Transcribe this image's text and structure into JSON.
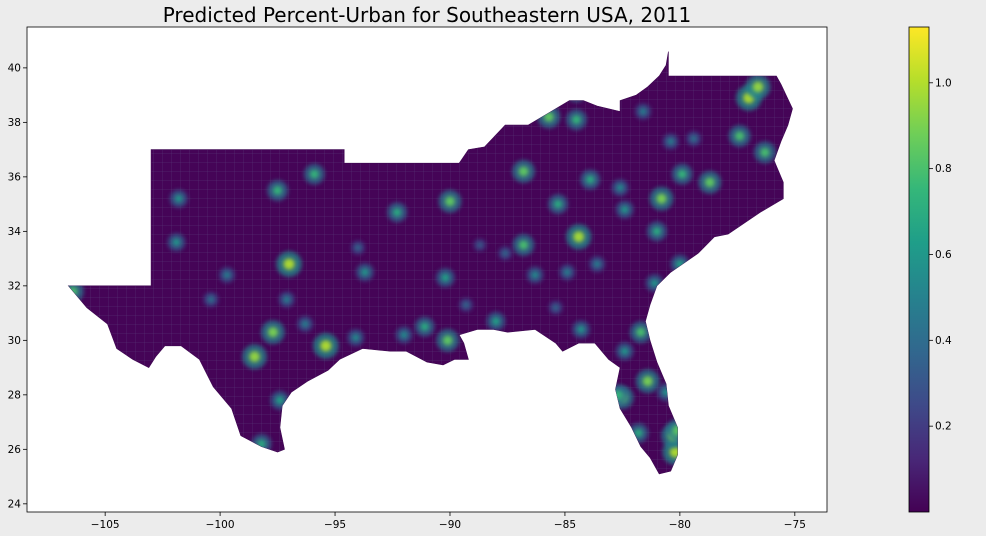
{
  "chart_data": {
    "type": "heatmap",
    "title": "Predicted Percent-Urban for Southeastern USA, 2011",
    "x_ticks": [
      "−105",
      "−100",
      "−95",
      "−90",
      "−85",
      "−80",
      "−75"
    ],
    "x_tick_values": [
      -105,
      -100,
      -95,
      -90,
      -85,
      -80,
      -75
    ],
    "y_ticks": [
      "24",
      "26",
      "28",
      "30",
      "32",
      "34",
      "36",
      "38",
      "40"
    ],
    "y_tick_values": [
      24,
      26,
      28,
      30,
      32,
      34,
      36,
      38,
      40
    ],
    "xlim": [
      -108.4,
      -73.6
    ],
    "ylim": [
      23.7,
      41.5
    ],
    "colorbar": {
      "colormap": "viridis",
      "range": [
        0,
        1.13
      ],
      "ticks": [
        "0.2",
        "0.4",
        "0.6",
        "0.8",
        "1.0"
      ],
      "tick_values": [
        0.2,
        0.4,
        0.6,
        0.8,
        1.0
      ]
    },
    "region_outline_lonlat": [
      [
        -106.6,
        32.0
      ],
      [
        -103.0,
        32.0
      ],
      [
        -103.0,
        36.5
      ],
      [
        -103.0,
        37.0
      ],
      [
        -94.6,
        37.0
      ],
      [
        -94.6,
        36.5
      ],
      [
        -90.1,
        36.5
      ],
      [
        -89.6,
        36.5
      ],
      [
        -89.2,
        37.0
      ],
      [
        -88.5,
        37.1
      ],
      [
        -87.6,
        37.9
      ],
      [
        -86.6,
        37.9
      ],
      [
        -85.8,
        38.3
      ],
      [
        -84.8,
        38.8
      ],
      [
        -84.2,
        38.8
      ],
      [
        -83.6,
        38.6
      ],
      [
        -82.6,
        38.4
      ],
      [
        -82.6,
        38.8
      ],
      [
        -81.9,
        39.0
      ],
      [
        -81.4,
        39.3
      ],
      [
        -80.9,
        39.7
      ],
      [
        -80.6,
        40.1
      ],
      [
        -80.5,
        40.6
      ],
      [
        -80.5,
        39.7
      ],
      [
        -75.8,
        39.7
      ],
      [
        -75.6,
        39.4
      ],
      [
        -75.1,
        38.5
      ],
      [
        -75.3,
        37.9
      ],
      [
        -75.6,
        37.3
      ],
      [
        -75.9,
        36.6
      ],
      [
        -75.5,
        35.8
      ],
      [
        -75.5,
        35.2
      ],
      [
        -76.5,
        34.7
      ],
      [
        -77.9,
        33.9
      ],
      [
        -78.5,
        33.8
      ],
      [
        -79.2,
        33.2
      ],
      [
        -80.4,
        32.5
      ],
      [
        -81.0,
        32.0
      ],
      [
        -81.3,
        31.3
      ],
      [
        -81.5,
        30.7
      ],
      [
        -81.3,
        30.0
      ],
      [
        -81.0,
        29.2
      ],
      [
        -80.6,
        28.4
      ],
      [
        -80.5,
        27.6
      ],
      [
        -80.1,
        26.8
      ],
      [
        -80.1,
        25.8
      ],
      [
        -80.4,
        25.2
      ],
      [
        -80.9,
        25.1
      ],
      [
        -81.3,
        25.7
      ],
      [
        -81.7,
        26.1
      ],
      [
        -82.1,
        26.8
      ],
      [
        -82.6,
        27.5
      ],
      [
        -82.8,
        28.2
      ],
      [
        -82.6,
        29.0
      ],
      [
        -83.1,
        29.3
      ],
      [
        -83.7,
        29.9
      ],
      [
        -84.4,
        29.9
      ],
      [
        -85.1,
        29.6
      ],
      [
        -85.4,
        29.9
      ],
      [
        -86.3,
        30.4
      ],
      [
        -87.5,
        30.3
      ],
      [
        -88.1,
        30.4
      ],
      [
        -88.8,
        30.4
      ],
      [
        -89.6,
        30.2
      ],
      [
        -89.4,
        29.9
      ],
      [
        -89.2,
        29.3
      ],
      [
        -89.8,
        29.3
      ],
      [
        -90.3,
        29.1
      ],
      [
        -91.0,
        29.2
      ],
      [
        -91.9,
        29.6
      ],
      [
        -92.6,
        29.6
      ],
      [
        -93.8,
        29.7
      ],
      [
        -94.8,
        29.3
      ],
      [
        -95.3,
        28.9
      ],
      [
        -96.2,
        28.5
      ],
      [
        -96.9,
        28.1
      ],
      [
        -97.3,
        27.6
      ],
      [
        -97.4,
        26.8
      ],
      [
        -97.2,
        26.0
      ],
      [
        -97.5,
        25.9
      ],
      [
        -98.2,
        26.1
      ],
      [
        -99.1,
        26.5
      ],
      [
        -99.5,
        27.5
      ],
      [
        -100.3,
        28.3
      ],
      [
        -100.9,
        29.3
      ],
      [
        -101.7,
        29.8
      ],
      [
        -102.4,
        29.8
      ],
      [
        -102.8,
        29.4
      ],
      [
        -103.1,
        29.0
      ],
      [
        -103.8,
        29.3
      ],
      [
        -104.5,
        29.7
      ],
      [
        -104.9,
        30.6
      ],
      [
        -105.8,
        31.2
      ],
      [
        -106.6,
        32.0
      ]
    ],
    "hotspots_lonlat_value": [
      [
        -97.0,
        32.8,
        1.0
      ],
      [
        -95.4,
        29.8,
        1.0
      ],
      [
        -98.5,
        29.4,
        0.95
      ],
      [
        -97.7,
        30.3,
        0.9
      ],
      [
        -84.4,
        33.8,
        0.98
      ],
      [
        -80.2,
        25.9,
        1.0
      ],
      [
        -80.3,
        26.5,
        0.9
      ],
      [
        -81.4,
        28.5,
        0.9
      ],
      [
        -82.5,
        27.9,
        0.85
      ],
      [
        -86.8,
        36.2,
        0.85
      ],
      [
        -77.0,
        38.9,
        1.0
      ],
      [
        -76.6,
        39.3,
        0.95
      ],
      [
        -77.4,
        37.5,
        0.8
      ],
      [
        -76.3,
        36.9,
        0.8
      ],
      [
        -80.8,
        35.2,
        0.9
      ],
      [
        -78.7,
        35.8,
        0.85
      ],
      [
        -79.9,
        36.1,
        0.75
      ],
      [
        -90.0,
        35.1,
        0.85
      ],
      [
        -86.8,
        33.5,
        0.8
      ],
      [
        -90.1,
        30.0,
        0.85
      ],
      [
        -91.1,
        30.5,
        0.7
      ],
      [
        -84.5,
        38.1,
        0.75
      ],
      [
        -85.7,
        38.2,
        0.85
      ],
      [
        -81.7,
        30.3,
        0.8
      ],
      [
        -84.3,
        30.4,
        0.6
      ],
      [
        -84.5,
        39.1,
        0.7
      ],
      [
        -83.9,
        35.9,
        0.7
      ],
      [
        -85.3,
        35.0,
        0.7
      ],
      [
        -80.0,
        32.8,
        0.65
      ],
      [
        -81.0,
        34.0,
        0.7
      ],
      [
        -82.4,
        34.8,
        0.6
      ],
      [
        -82.4,
        29.6,
        0.6
      ],
      [
        -101.8,
        35.2,
        0.6
      ],
      [
        -97.5,
        35.5,
        0.75
      ],
      [
        -95.9,
        36.1,
        0.75
      ],
      [
        -94.0,
        33.4,
        0.4
      ],
      [
        -92.3,
        34.7,
        0.7
      ],
      [
        -93.7,
        32.5,
        0.6
      ],
      [
        -88.0,
        30.7,
        0.65
      ],
      [
        -89.3,
        31.3,
        0.4
      ],
      [
        -90.2,
        32.3,
        0.65
      ],
      [
        -87.6,
        33.2,
        0.4
      ],
      [
        -86.3,
        32.4,
        0.55
      ],
      [
        -85.4,
        31.2,
        0.4
      ],
      [
        -83.6,
        32.8,
        0.5
      ],
      [
        -81.1,
        32.1,
        0.6
      ],
      [
        -106.4,
        31.8,
        0.8
      ],
      [
        -101.9,
        33.6,
        0.6
      ],
      [
        -97.4,
        27.8,
        0.65
      ],
      [
        -98.2,
        26.2,
        0.7
      ],
      [
        -99.7,
        32.4,
        0.5
      ],
      [
        -100.4,
        31.5,
        0.45
      ],
      [
        -97.1,
        31.5,
        0.5
      ],
      [
        -94.1,
        30.1,
        0.55
      ],
      [
        -92.0,
        30.2,
        0.55
      ],
      [
        -80.4,
        37.3,
        0.5
      ],
      [
        -79.4,
        37.4,
        0.45
      ],
      [
        -82.6,
        35.6,
        0.55
      ],
      [
        -81.6,
        38.4,
        0.5
      ],
      [
        -80.1,
        26.7,
        0.85
      ],
      [
        -82.7,
        28.0,
        0.75
      ],
      [
        -81.8,
        26.6,
        0.7
      ],
      [
        -80.6,
        28.1,
        0.6
      ],
      [
        -96.3,
        30.6,
        0.5
      ],
      [
        -88.7,
        33.5,
        0.35
      ],
      [
        -84.9,
        32.5,
        0.5
      ]
    ]
  }
}
